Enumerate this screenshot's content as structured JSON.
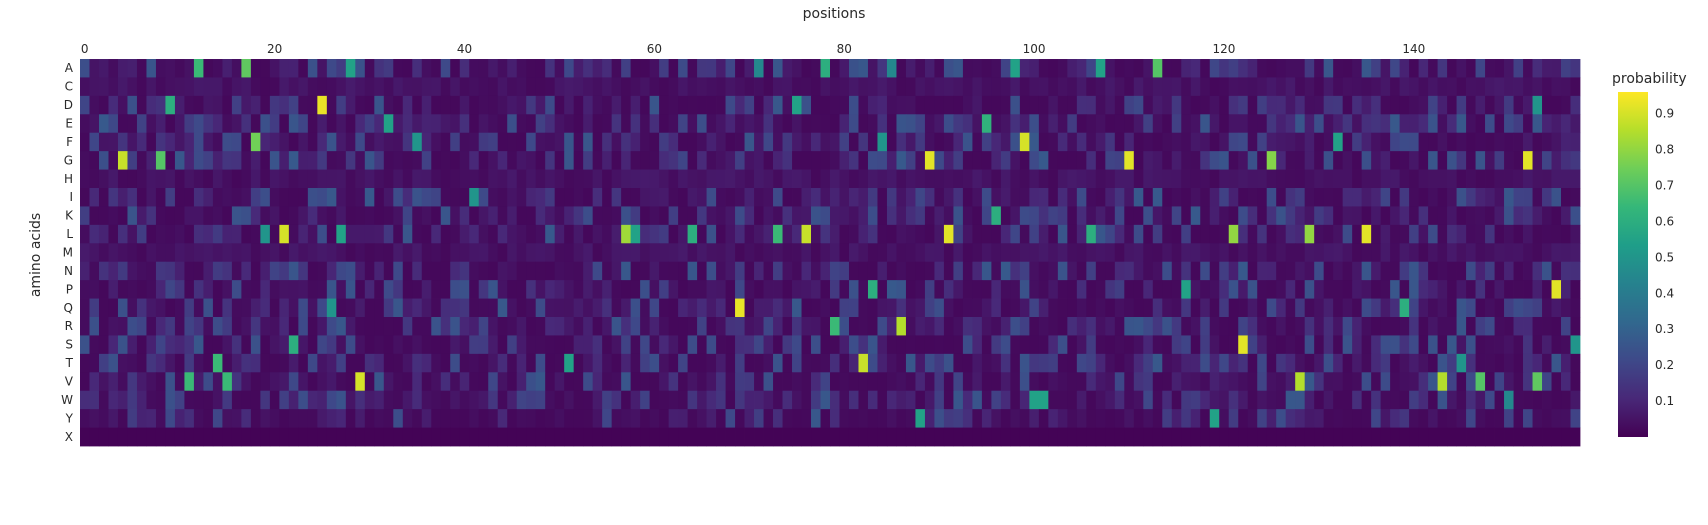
{
  "chart_data": {
    "type": "heatmap",
    "title": "",
    "xlabel": "positions",
    "ylabel": "amino acids",
    "x_axis_side": "top",
    "x_range": [
      0,
      157
    ],
    "x_ticks": [
      0,
      20,
      40,
      60,
      80,
      100,
      120,
      140
    ],
    "y_categories": [
      "A",
      "C",
      "D",
      "E",
      "F",
      "G",
      "H",
      "I",
      "K",
      "L",
      "M",
      "N",
      "P",
      "Q",
      "R",
      "S",
      "T",
      "V",
      "W",
      "Y",
      "X"
    ],
    "colorscale": "viridis",
    "colors": [
      "#440154",
      "#482878",
      "#3e4989",
      "#31688e",
      "#26828e",
      "#1f9e89",
      "#35b779",
      "#6ece58",
      "#b5de2b",
      "#fde725"
    ],
    "colorbar": {
      "title": "probability",
      "range": [
        0,
        0.96
      ],
      "ticks": [
        0.1,
        0.2,
        0.3,
        0.4,
        0.5,
        0.6,
        0.7,
        0.8,
        0.9
      ]
    },
    "background_level": 0.06,
    "peaks": [
      {
        "x": 12,
        "aa": "A",
        "p": 0.65
      },
      {
        "x": 17,
        "aa": "A",
        "p": 0.72
      },
      {
        "x": 28,
        "aa": "A",
        "p": 0.55
      },
      {
        "x": 71,
        "aa": "A",
        "p": 0.45
      },
      {
        "x": 78,
        "aa": "A",
        "p": 0.6
      },
      {
        "x": 98,
        "aa": "A",
        "p": 0.55
      },
      {
        "x": 107,
        "aa": "A",
        "p": 0.55
      },
      {
        "x": 113,
        "aa": "A",
        "p": 0.7
      },
      {
        "x": 85,
        "aa": "A",
        "p": 0.45
      },
      {
        "x": 25,
        "aa": "D",
        "p": 0.93
      },
      {
        "x": 9,
        "aa": "D",
        "p": 0.6
      },
      {
        "x": 75,
        "aa": "D",
        "p": 0.55
      },
      {
        "x": 153,
        "aa": "D",
        "p": 0.5
      },
      {
        "x": 32,
        "aa": "E",
        "p": 0.55
      },
      {
        "x": 95,
        "aa": "E",
        "p": 0.62
      },
      {
        "x": 18,
        "aa": "F",
        "p": 0.75
      },
      {
        "x": 35,
        "aa": "F",
        "p": 0.5
      },
      {
        "x": 84,
        "aa": "F",
        "p": 0.5
      },
      {
        "x": 99,
        "aa": "F",
        "p": 0.9
      },
      {
        "x": 132,
        "aa": "F",
        "p": 0.55
      },
      {
        "x": 4,
        "aa": "G",
        "p": 0.88
      },
      {
        "x": 8,
        "aa": "G",
        "p": 0.7
      },
      {
        "x": 89,
        "aa": "G",
        "p": 0.92
      },
      {
        "x": 110,
        "aa": "G",
        "p": 0.92
      },
      {
        "x": 125,
        "aa": "G",
        "p": 0.78
      },
      {
        "x": 152,
        "aa": "G",
        "p": 0.92
      },
      {
        "x": 41,
        "aa": "I",
        "p": 0.5
      },
      {
        "x": 96,
        "aa": "K",
        "p": 0.6
      },
      {
        "x": 21,
        "aa": "L",
        "p": 0.9
      },
      {
        "x": 19,
        "aa": "L",
        "p": 0.5
      },
      {
        "x": 27,
        "aa": "L",
        "p": 0.55
      },
      {
        "x": 57,
        "aa": "L",
        "p": 0.82
      },
      {
        "x": 58,
        "aa": "L",
        "p": 0.55
      },
      {
        "x": 64,
        "aa": "L",
        "p": 0.6
      },
      {
        "x": 73,
        "aa": "L",
        "p": 0.65
      },
      {
        "x": 76,
        "aa": "L",
        "p": 0.88
      },
      {
        "x": 91,
        "aa": "L",
        "p": 0.92
      },
      {
        "x": 106,
        "aa": "L",
        "p": 0.6
      },
      {
        "x": 121,
        "aa": "L",
        "p": 0.8
      },
      {
        "x": 129,
        "aa": "L",
        "p": 0.8
      },
      {
        "x": 135,
        "aa": "L",
        "p": 0.92
      },
      {
        "x": 83,
        "aa": "P",
        "p": 0.6
      },
      {
        "x": 116,
        "aa": "P",
        "p": 0.55
      },
      {
        "x": 155,
        "aa": "P",
        "p": 0.92
      },
      {
        "x": 69,
        "aa": "Q",
        "p": 0.93
      },
      {
        "x": 26,
        "aa": "Q",
        "p": 0.5
      },
      {
        "x": 139,
        "aa": "Q",
        "p": 0.6
      },
      {
        "x": 79,
        "aa": "R",
        "p": 0.65
      },
      {
        "x": 86,
        "aa": "R",
        "p": 0.85
      },
      {
        "x": 22,
        "aa": "S",
        "p": 0.6
      },
      {
        "x": 122,
        "aa": "S",
        "p": 0.92
      },
      {
        "x": 157,
        "aa": "S",
        "p": 0.5
      },
      {
        "x": 14,
        "aa": "T",
        "p": 0.65
      },
      {
        "x": 51,
        "aa": "T",
        "p": 0.55
      },
      {
        "x": 82,
        "aa": "T",
        "p": 0.88
      },
      {
        "x": 145,
        "aa": "T",
        "p": 0.5
      },
      {
        "x": 11,
        "aa": "V",
        "p": 0.65
      },
      {
        "x": 15,
        "aa": "V",
        "p": 0.65
      },
      {
        "x": 29,
        "aa": "V",
        "p": 0.9
      },
      {
        "x": 128,
        "aa": "V",
        "p": 0.85
      },
      {
        "x": 143,
        "aa": "V",
        "p": 0.85
      },
      {
        "x": 147,
        "aa": "V",
        "p": 0.7
      },
      {
        "x": 153,
        "aa": "V",
        "p": 0.72
      },
      {
        "x": 100,
        "aa": "W",
        "p": 0.55
      },
      {
        "x": 101,
        "aa": "W",
        "p": 0.55
      },
      {
        "x": 88,
        "aa": "Y",
        "p": 0.55
      },
      {
        "x": 119,
        "aa": "Y",
        "p": 0.55
      },
      {
        "x": 150,
        "aa": "W",
        "p": 0.45
      }
    ]
  }
}
